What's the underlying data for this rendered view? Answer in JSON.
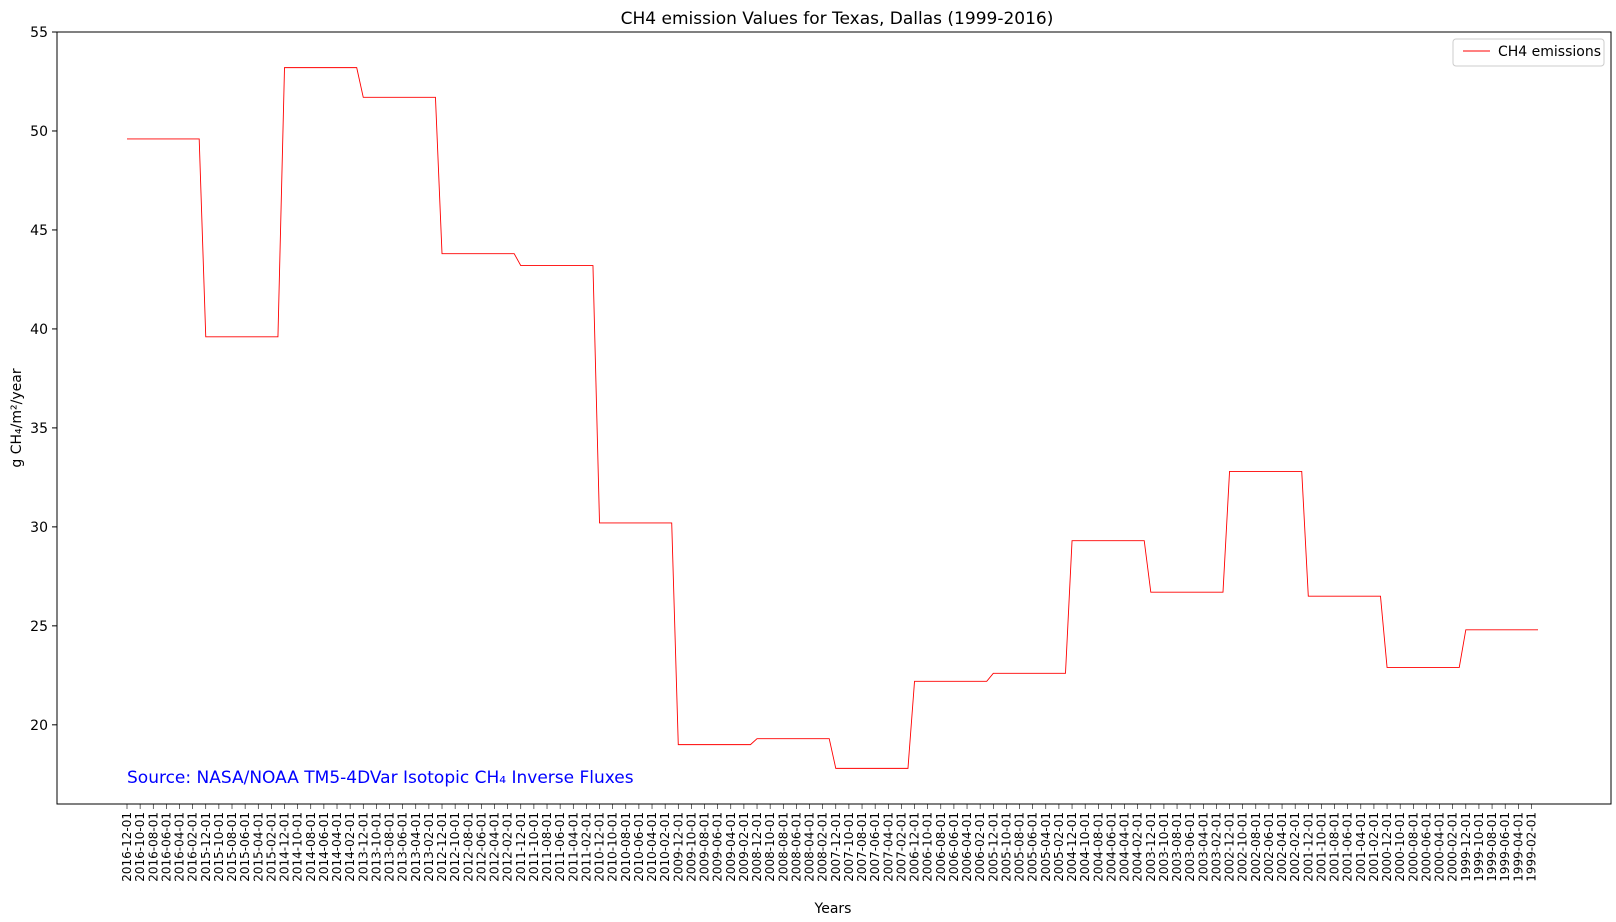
{
  "chart_data": {
    "type": "line",
    "title": "CH4 emission Values for Texas, Dallas (1999-2016)",
    "xlabel": "Years",
    "ylabel": "g CH₄/m²/year",
    "annotation": "Source: NASA/NOAA TM5-4DVar Isotopic CH₄ Inverse Fluxes",
    "x_order": "descending",
    "x_start": "2016-12-01",
    "x_end": "1999-01-01",
    "ylim": [
      16,
      55
    ],
    "yticks": [
      20,
      25,
      30,
      35,
      40,
      45,
      50,
      55
    ],
    "grid": false,
    "legend_position": "top-right",
    "series": [
      {
        "name": "CH4 emissions",
        "color": "#ff0000",
        "annual_values": [
          {
            "year": 2016,
            "value": 49.6
          },
          {
            "year": 2015,
            "value": 39.6
          },
          {
            "year": 2014,
            "value": 53.2
          },
          {
            "year": 2013,
            "value": 51.7
          },
          {
            "year": 2012,
            "value": 43.8
          },
          {
            "year": 2011,
            "value": 43.2
          },
          {
            "year": 2010,
            "value": 30.2
          },
          {
            "year": 2009,
            "value": 19.0
          },
          {
            "year": 2008,
            "value": 19.3
          },
          {
            "year": 2007,
            "value": 17.8
          },
          {
            "year": 2006,
            "value": 22.2
          },
          {
            "year": 2005,
            "value": 22.6
          },
          {
            "year": 2004,
            "value": 29.3
          },
          {
            "year": 2003,
            "value": 26.7
          },
          {
            "year": 2002,
            "value": 32.8
          },
          {
            "year": 2001,
            "value": 26.5
          },
          {
            "year": 2000,
            "value": 22.9
          },
          {
            "year": 1999,
            "value": 24.8
          }
        ]
      }
    ]
  },
  "style": {
    "line_color": "#ff0000",
    "annotation_color": "#0000ff"
  }
}
